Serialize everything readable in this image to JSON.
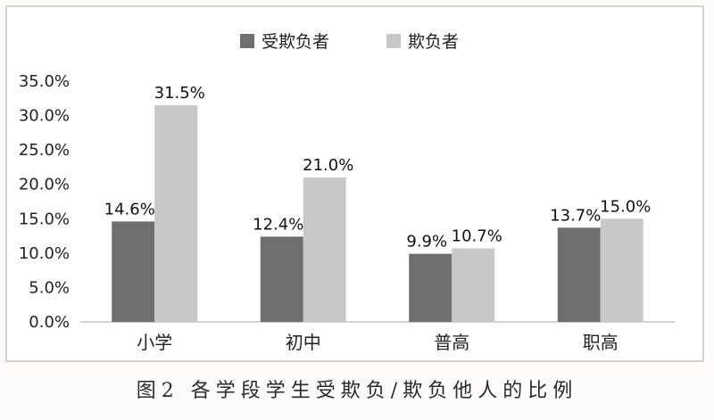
{
  "caption": "图2  各学段学生受欺负/欺负他人的比例",
  "chart_data": {
    "type": "bar",
    "categories": [
      "小学",
      "初中",
      "普高",
      "职高"
    ],
    "series": [
      {
        "name": "受欺负者",
        "values": [
          14.6,
          12.4,
          9.9,
          13.7
        ],
        "labels": [
          "14.6%",
          "12.4%",
          "9.9%",
          "13.7%"
        ],
        "color": "#6e6e6e"
      },
      {
        "name": "欺负者",
        "values": [
          31.5,
          21.0,
          10.7,
          15.0
        ],
        "labels": [
          "31.5%",
          "21.0%",
          "10.7%",
          "15.0%"
        ],
        "color": "#c8c8c8"
      }
    ],
    "ylim": [
      0,
      35
    ],
    "yticks": [
      0,
      5,
      10,
      15,
      20,
      25,
      30,
      35
    ],
    "ytick_labels": [
      "0.0%",
      "5.0%",
      "10.0%",
      "15.0%",
      "20.0%",
      "25.0%",
      "30.0%",
      "35.0%"
    ],
    "legend_position": "top-center",
    "grid": false
  }
}
